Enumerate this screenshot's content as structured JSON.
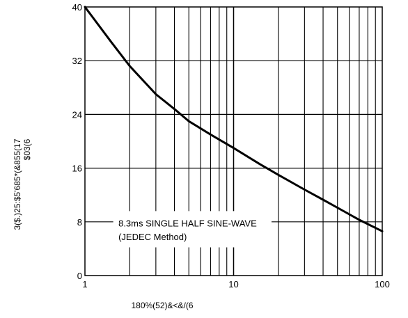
{
  "chart_data": {
    "type": "line",
    "xlabel": "180%(52)&<&/(6",
    "ylabel": "3($.)25:$5'685*(&855(17",
    "ylabel_units": "$03(6",
    "x_scale": "log",
    "xlim": [
      1,
      100
    ],
    "ylim": [
      0,
      40
    ],
    "x_ticks": [
      "1",
      "10",
      "100"
    ],
    "y_ticks": [
      "0",
      "8",
      "16",
      "24",
      "32",
      "40"
    ],
    "grid": true,
    "annotation": {
      "line1": "8.3ms SINGLE HALF SINE-WAVE",
      "line2": "(JEDEC Method)"
    },
    "series": [
      {
        "x": [
          1,
          1.5,
          2,
          3,
          4,
          5,
          7,
          10,
          15,
          20,
          30,
          40,
          50,
          70,
          100
        ],
        "y": [
          40,
          34.8,
          31.2,
          27.0,
          24.8,
          23.0,
          21.0,
          19.0,
          16.6,
          15.0,
          12.8,
          11.3,
          10.1,
          8.3,
          6.6
        ]
      }
    ]
  }
}
